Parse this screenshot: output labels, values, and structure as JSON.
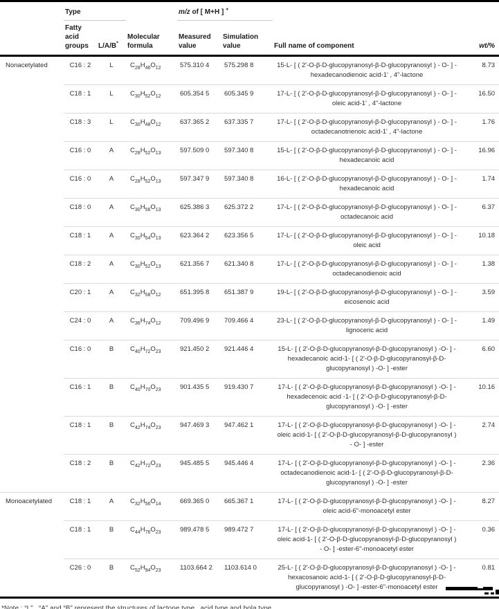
{
  "table": {
    "group_headers": {
      "type": "Type",
      "mz_italic": "m/z",
      "mz_rest": " of [ M+H ] ",
      "mz_sup": "+"
    },
    "columns": {
      "fatty": "Fatty acid groups",
      "lab": "L/A/B",
      "lab_sup": "*",
      "formula": "Molecular formula",
      "measured": "Measured value",
      "simulation": "Simulation value",
      "name": "Full name of component",
      "wt": "wt/%"
    },
    "rows": [
      {
        "type": "Nonacetylated",
        "fatty": "C16 : 2",
        "lab": "L",
        "formula": "C28H46O12",
        "measured": "575.310 4",
        "simulation": "575.298 8",
        "name": "15-L- [ ( 2'-O-β-D-glucopyranosyl-β-D-glucopyranosyl ) - O- ] - hexadecanodienoic acid-1' , 4\"-lactone",
        "wt": "8.73"
      },
      {
        "type": "",
        "fatty": "C18 : 1",
        "lab": "L",
        "formula": "C30H52O12",
        "measured": "605.354 5",
        "simulation": "605.345 9",
        "name": "17-L- [ ( 2'-O-β-D-glucopyranosyl-β-D-glucopyranosyl ) - O- ] - oleic acid-1' , 4\"-lactone",
        "wt": "16.50"
      },
      {
        "type": "",
        "fatty": "C18 : 3",
        "lab": "L",
        "formula": "C30H48O12",
        "measured": "637.365 2",
        "simulation": "637.335 7",
        "name": "17-L- [ ( 2'-O-β-D-glucopyranosyl-β-D-glucopyranosyl ) - O- ] - octadecanotrienoic acid-1' , 4\"-lactone",
        "wt": "1.76"
      },
      {
        "type": "",
        "fatty": "C16 : 0",
        "lab": "A",
        "formula": "C28H52O13",
        "measured": "597.509 0",
        "simulation": "597.340 8",
        "name": "15-L- [ ( 2'-O-β-D-glucopyranosyl-β-D-glucopyranosyl ) - O- ] - hexadecanoic acid",
        "wt": "16.96"
      },
      {
        "type": "",
        "fatty": "C16 : 0",
        "lab": "A",
        "formula": "C28H52O13",
        "measured": "597.347 9",
        "simulation": "597.340 8",
        "name": "16-L- [ ( 2'-O-β-D-glucopyranosyl-β-D-glucopyranosyl ) - O- ] - hexadecanoic acid",
        "wt": "1.74"
      },
      {
        "type": "",
        "fatty": "C18 : 0",
        "lab": "A",
        "formula": "C30H56O13",
        "measured": "625.386 3",
        "simulation": "625.372 2",
        "name": "17-L- [ ( 2'-O-β-D-glucopyranosyl-β-D-glucopyranosyl ) - O- ] - octadecanoic acid",
        "wt": "6.37"
      },
      {
        "type": "",
        "fatty": "C18 : 1",
        "lab": "A",
        "formula": "C30H54O13",
        "measured": "623.364 2",
        "simulation": "623.356 5",
        "name": "17-L- [ ( 2'-O-β-D-glucopyranosyl-β-D-glucopyranosyl ) - O- ] - oleic acid",
        "wt": "10.18"
      },
      {
        "type": "",
        "fatty": "C18 : 2",
        "lab": "A",
        "formula": "C30H52O13",
        "measured": "621.356 7",
        "simulation": "621.340 8",
        "name": "17-L- [ ( 2'-O-β-D-glucopyranosyl-β-D-glucopyranosyl ) - O- ] - octadecanodienoic acid",
        "wt": "1.38"
      },
      {
        "type": "",
        "fatty": "C20 : 1",
        "lab": "A",
        "formula": "C32H58O12",
        "measured": "651.395 8",
        "simulation": "651.387 9",
        "name": "19-L- [ ( 2'-O-β-D-glucopyranosyl-β-D-glucopyranosyl ) - O- ] - eicosenoic acid",
        "wt": "3.59"
      },
      {
        "type": "",
        "fatty": "C24 : 0",
        "lab": "A",
        "formula": "C36H74O12",
        "measured": "709.496 9",
        "simulation": "709.466 4",
        "name": "23-L- [ ( 2'-O-β-D-glucopyranosyl-β-D-glucopyranosyl ) - O- ] - lignoceric acid",
        "wt": "1.49"
      },
      {
        "type": "",
        "fatty": "C16 : 0",
        "lab": "B",
        "formula": "C40H72O23",
        "measured": "921.450 2",
        "simulation": "921.446 4",
        "name": "15-L- [ ( 2'-O-β-D-glucopyranosyl-β-D-glucopyranosyl ) -O- ] - hexadecanoic acid-1- [ ( 2'-O-β-D-glucopyranosyl-β-D-glucopyranosyl ) -O- ] -ester",
        "wt": "6.60"
      },
      {
        "type": "",
        "fatty": "C16 : 1",
        "lab": "B",
        "formula": "C40H70O23",
        "measured": "901.435 5",
        "simulation": "919.430 7",
        "name": "17-L- [ ( 2'-O-β-D-glucopyranosyl-β-D-glucopyranosyl ) -O- ] - hexadecenoic acid -1- [ ( 2'-O-β-D-glucopyranosyl-β-D-glucopyranosyl ) -O- ] -ester",
        "wt": "10.16"
      },
      {
        "type": "",
        "fatty": "C18 : 1",
        "lab": "B",
        "formula": "C42H74O23",
        "measured": "947.469 3",
        "simulation": "947.462 1",
        "name": "17-L- [ ( 2'-O-β-D-glucopyranosyl-β-D-glucopyranosyl ) -O- ] - oleic acid-1- [ ( 2'-O-β-D-glucopyranosyl-β-D-glucopyranosyl ) - O- ] -ester",
        "wt": "2.74"
      },
      {
        "type": "",
        "fatty": "C18 : 2",
        "lab": "B",
        "formula": "C42H72O23",
        "measured": "945.485 5",
        "simulation": "945.446 4",
        "name": "17-L- [ ( 2'-O-β-D-glucopyranosyl-β-D-glucopyranosyl ) -O- ] - octadecanodienoic acid-1- [ ( 2'-O-β-D-glucopyranosyl-β-D-glucopyranosyl ) -O- ] -ester",
        "wt": "2.36"
      },
      {
        "type": "Monoacetylated",
        "fatty": "C18 : 1",
        "lab": "A",
        "formula": "C32H56O14",
        "measured": "669.365 0",
        "simulation": "665.367 1",
        "name": "17-L- [ ( 2'-O-β-D-glucopyranosyl-β-D-glucopyranosyl ) -O- ] - oleic acid-6\"-monoacetyl ester",
        "wt": "8.27"
      },
      {
        "type": "",
        "fatty": "C18 : 1",
        "lab": "B",
        "formula": "C44H76O23",
        "measured": "989.478 5",
        "simulation": "989.472 7",
        "name": "17-L- [ ( 2'-O-β-D-glucopyranosyl-β-D-glucopyranosyl ) -O- ] - oleic acid-1- [ ( 2'-O-β-D-glucopyranosyl-β-D-glucopyranosyl ) - O- ] -ester-6\"-monoacetyl ester",
        "wt": "0.36"
      },
      {
        "type": "",
        "fatty": "C26 : 0",
        "lab": "B",
        "formula": "C52H94O23",
        "measured": "1103.664 2",
        "simulation": "1103.614 0",
        "name": "25-L- [ ( 2'-O-β-D-glucopyranosyl-β-D-glucopyranosyl ) -O- ] - hexacosanoic acid-1- [ ( 2'-O-β-D-glucopyranosyl-β-D-glucopyranosyl ) -O- ] -ester-6\"-monoacetyl ester",
        "wt": "0.81"
      }
    ]
  },
  "footnote": {
    "text": "*Note : “L” , “A” and “B” represent the structures of lactone type , acid type and bola type."
  },
  "colors": {
    "rule_heavy": "#000000",
    "rule_light": "#dadada",
    "text": "#2e2e2e"
  }
}
